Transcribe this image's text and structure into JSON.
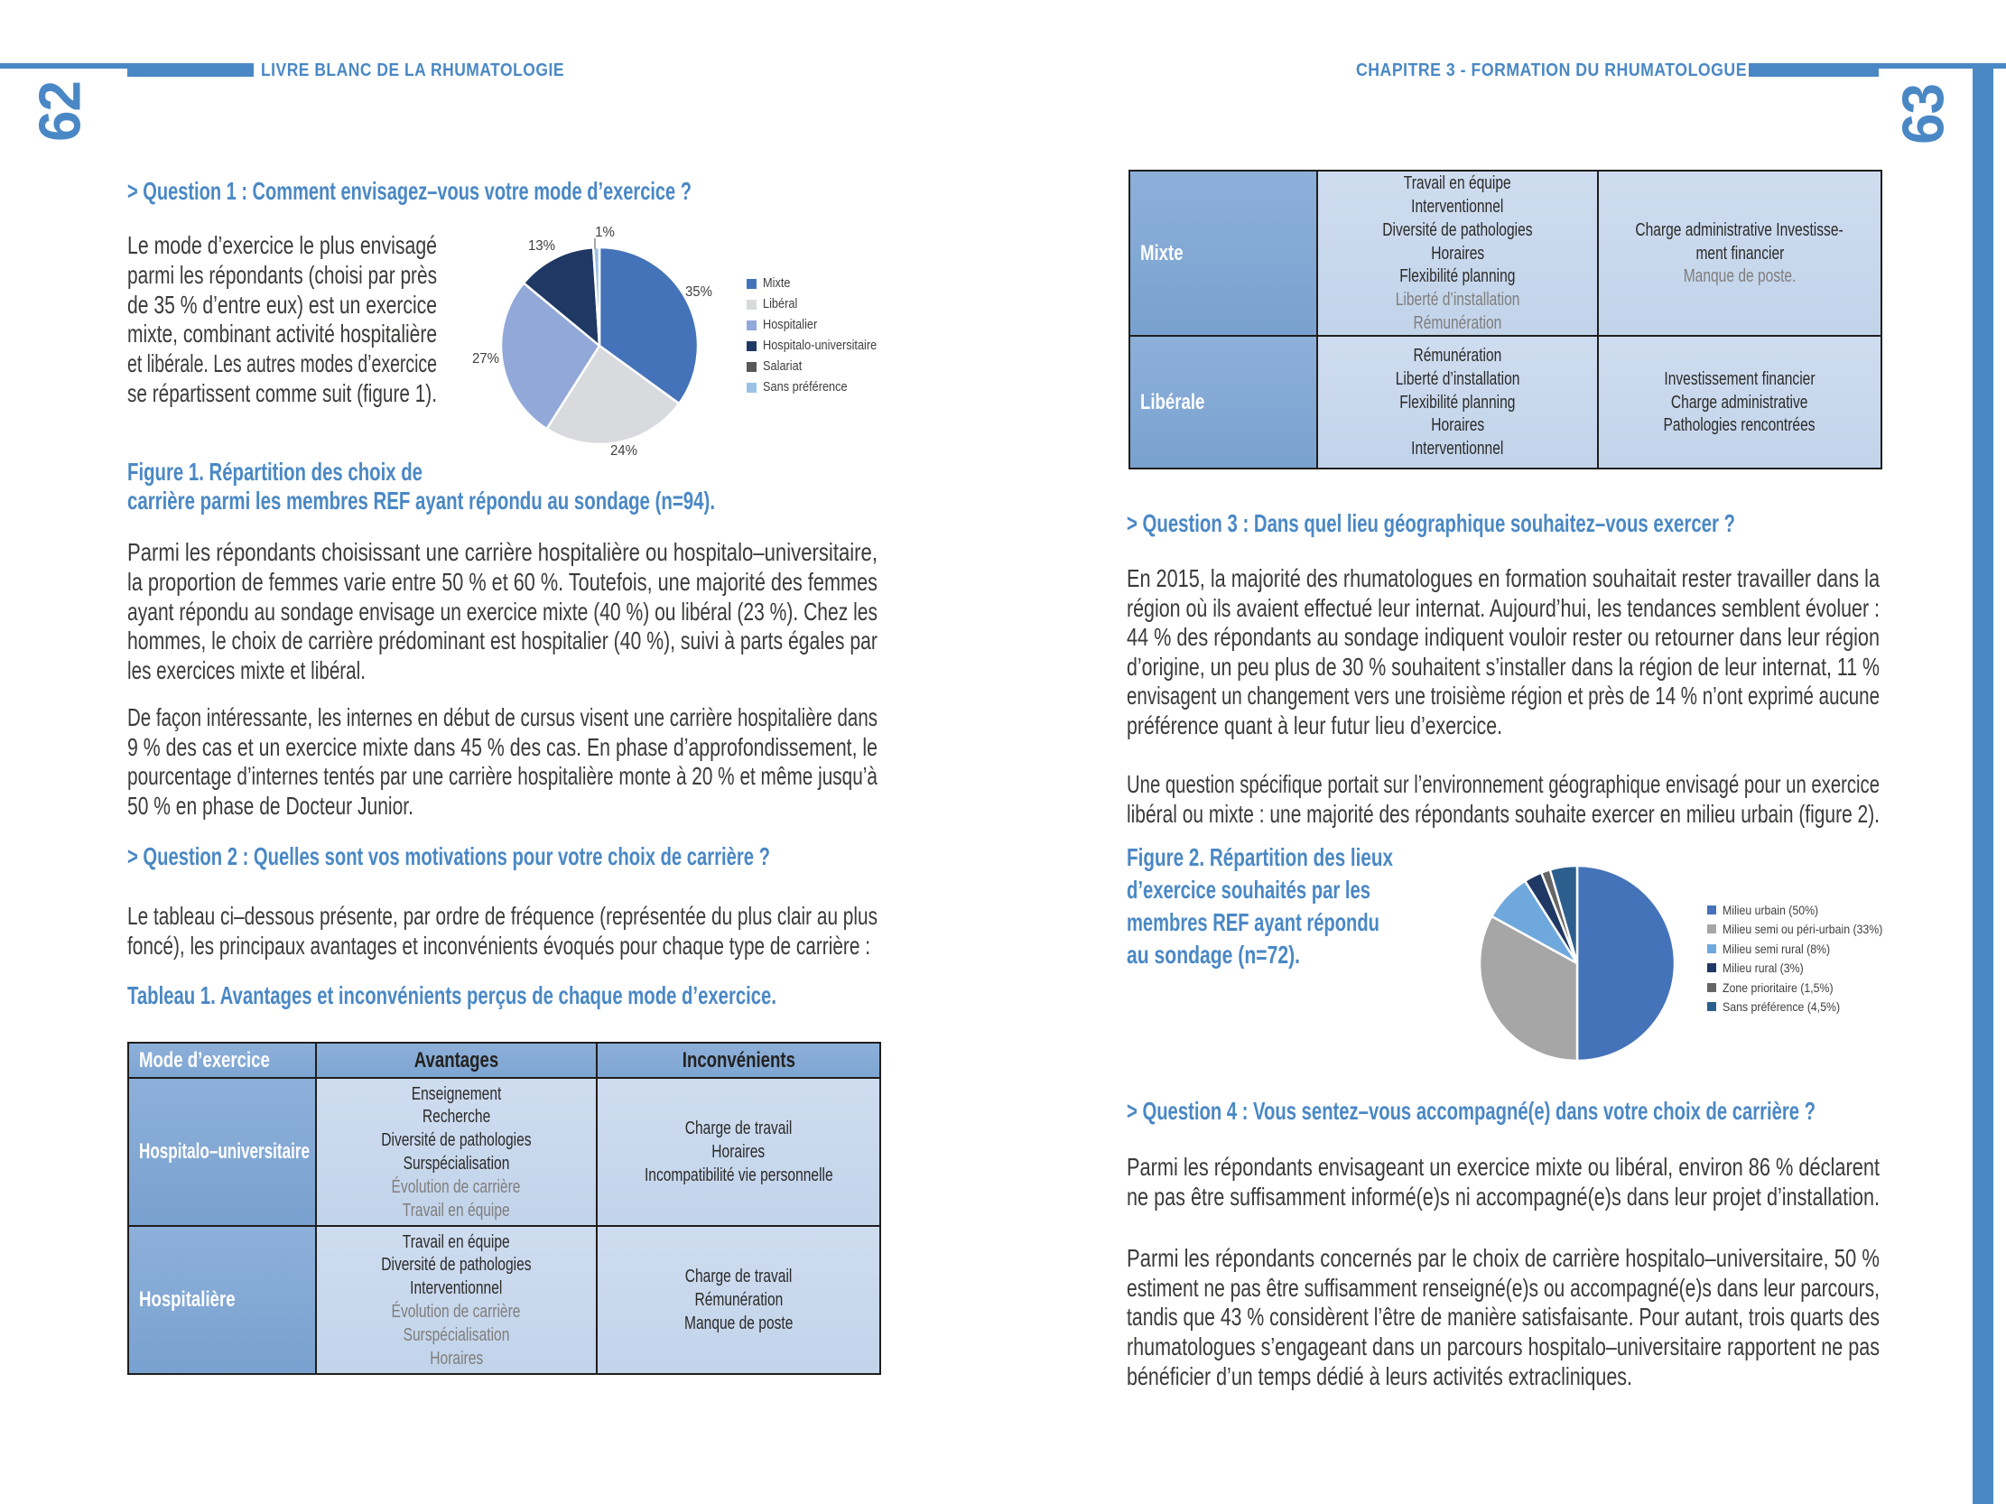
{
  "colors": {
    "accent": "#4a88c5",
    "table_header_bg": "#84a9d5",
    "table_label_bg": "#80a6d3",
    "table_cell_bg": "#c8d8ed",
    "body_text": "#3b3b3a",
    "muted_text": "#7f7d7c"
  },
  "header": {
    "left_title": "LIVRE BLANC DE LA RHUMATOLOGIE",
    "right_title": "CHAPITRE 3 - FORMATION DU RHUMATOLOGUE",
    "left_page_number": "62",
    "right_page_number": "63"
  },
  "left_page": {
    "q1_heading": "> Question 1 : Comment envisagez–vous votre mode d’exercice ?",
    "p1": [
      "Le mode d’exercice le plus envisagé",
      "parmi les répondants (choisi par près",
      "de 35 % d’entre eux) est un exercice",
      "mixte, combinant activité hospitalière",
      "et libérale. Les autres modes d’exercice",
      "se répartissent comme suit (figure 1)."
    ],
    "fig1_caption": [
      "Figure 1. Répartition des choix de",
      "carrière parmi les membres REF ayant répondu au sondage (n=94)."
    ],
    "p2": [
      "Parmi les répondants choisissant une carrière hospitalière ou hospitalo–universitaire,",
      "la proportion de femmes varie entre 50 % et 60 %. Toutefois, une majorité des femmes",
      "ayant répondu au sondage envisage un exercice mixte (40 %) ou libéral (23 %). Chez les",
      "hommes, le choix de carrière prédominant est hospitalier (40 %), suivi à parts égales par",
      "les exercices mixte et libéral."
    ],
    "p3": [
      "De façon intéressante, les internes en début de cursus visent une carrière hospitalière dans",
      "9 % des cas et un exercice mixte dans 45 % des cas. En phase d’approfondissement, le",
      "pourcentage d’internes tentés par une carrière hospitalière monte à 20 % et même jusqu’à",
      "50 % en phase de Docteur Junior."
    ],
    "q2_heading": "> Question 2 : Quelles sont vos motivations pour votre choix de carrière ?",
    "p4": [
      "Le tableau ci–dessous présente, par ordre de fréquence (représentée du plus clair au plus",
      "foncé), les principaux avantages et inconvénients évoqués pour chaque type de carrière :"
    ],
    "table1_title": "Tableau 1. Avantages et inconvénients perçus de chaque mode d’exercice."
  },
  "table1": {
    "headers": [
      "Mode d’exercice",
      "Avantages",
      "Inconvénients"
    ],
    "rows": [
      {
        "label": "Hospitalo–universitaire",
        "advantages": [
          {
            "t": "Enseignement"
          },
          {
            "t": "Recherche"
          },
          {
            "t": "Diversité de pathologies"
          },
          {
            "t": "Surspécialisation"
          },
          {
            "t": "Évolution de carrière",
            "muted": true
          },
          {
            "t": "Travail en équipe",
            "muted": true
          }
        ],
        "disadvantages": [
          {
            "t": "Charge de travail"
          },
          {
            "t": "Horaires"
          },
          {
            "t": "Incompatibilité vie personnelle"
          }
        ]
      },
      {
        "label": "Hospitalière",
        "advantages": [
          {
            "t": "Travail en équipe"
          },
          {
            "t": "Diversité de pathologies"
          },
          {
            "t": "Interventionnel"
          },
          {
            "t": "Évolution de carrière",
            "muted": true
          },
          {
            "t": "Surspécialisation",
            "muted": true
          },
          {
            "t": "Horaires",
            "muted": true
          }
        ],
        "disadvantages": [
          {
            "t": "Charge de travail"
          },
          {
            "t": "Rémunération"
          },
          {
            "t": "Manque de poste"
          }
        ]
      }
    ]
  },
  "table2": {
    "rows": [
      {
        "label": "Mixte",
        "advantages": [
          {
            "t": "Travail en équipe"
          },
          {
            "t": "Interventionnel"
          },
          {
            "t": "Diversité de pathologies"
          },
          {
            "t": "Horaires"
          },
          {
            "t": "Flexibilité planning"
          },
          {
            "t": "Liberté d’installation",
            "muted": true
          },
          {
            "t": "Rémunération",
            "muted": true
          }
        ],
        "disadvantages": [
          {
            "t": "Charge administrative Investisse-"
          },
          {
            "t": "ment financier"
          },
          {
            "t": "Manque de poste.",
            "muted": true
          }
        ]
      },
      {
        "label": "Libérale",
        "advantages": [
          {
            "t": "Rémunération"
          },
          {
            "t": "Liberté d’installation"
          },
          {
            "t": "Flexibilité planning"
          },
          {
            "t": "Horaires"
          },
          {
            "t": "Interventionnel"
          }
        ],
        "disadvantages": [
          {
            "t": "Investissement financier"
          },
          {
            "t": "Charge administrative"
          },
          {
            "t": "Pathologies rencontrées"
          }
        ]
      }
    ]
  },
  "right_page": {
    "q3_heading": "> Question 3 : Dans quel lieu géographique souhaitez–vous exercer ?",
    "p1": [
      "En 2015, la majorité des rhumatologues en formation souhaitait rester travailler dans la",
      "région où ils avaient effectué leur internat. Aujourd’hui, les tendances semblent évoluer :",
      "44 % des répondants au sondage indiquent vouloir rester ou retourner dans leur région",
      "d’origine, un peu plus de 30 % souhaitent s’installer dans la région de leur internat, 11 %",
      "envisagent un changement vers une troisième région et près de 14 % n’ont exprimé aucune",
      "préférence quant à leur futur lieu d’exercice."
    ],
    "p2": [
      "Une question spécifique portait sur l’environnement géographique envisagé pour un exercice",
      "libéral ou mixte : une majorité des répondants souhaite exercer en milieu urbain (figure 2)."
    ],
    "fig2_caption": [
      "Figure 2. Répartition des lieux",
      "d’exercice souhaités par les",
      "membres REF ayant répondu",
      "au sondage (n=72)."
    ],
    "q4_heading": "> Question 4 : Vous sentez–vous accompagné(e) dans votre choix de carrière ?",
    "p3": [
      "Parmi les répondants envisageant un exercice mixte ou libéral, environ 86 % déclarent",
      "ne pas être suffisamment informé(e)s ni accompagné(e)s dans leur projet d’installation."
    ],
    "p4": [
      "Parmi les répondants concernés par le choix de carrière hospitalo–universitaire, 50 %",
      "estiment ne pas être suffisamment renseigné(e)s ou accompagné(e)s dans leur parcours,",
      "tandis que 43 % considèrent l’être de manière satisfaisante. Pour autant, trois quarts des",
      "rhumatologues s’engageant dans un parcours hospitalo–universitaire rapportent ne pas",
      "bénéficier d’un temps dédié à leurs activités extracliniques."
    ]
  },
  "chart_data": [
    {
      "id": "fig1",
      "type": "pie",
      "title": "Figure 1. Répartition des choix de carrière parmi les membres REF ayant répondu au sondage (n=94).",
      "labels": [
        "Mixte",
        "Libéral",
        "Hospitalier",
        "Hospitalo-universitaire",
        "Salariat",
        "Sans préférence"
      ],
      "values": [
        35,
        24,
        27,
        13,
        0,
        1
      ],
      "unit": "%",
      "colors": [
        "#4573b9",
        "#d9dade",
        "#92a8d8",
        "#1f3864",
        "#585858",
        "#9cc2e5"
      ],
      "pct_labels": [
        "35%",
        "24%",
        "27%",
        "13%",
        "1%"
      ],
      "legend_position": "right",
      "start_angle_deg": 0,
      "direction": "clockwise",
      "legend": [
        {
          "label": "Mixte",
          "color": "#4573b9"
        },
        {
          "label": "Libéral",
          "color": "#d9dade"
        },
        {
          "label": "Hospitalier",
          "color": "#92a8d8"
        },
        {
          "label": "Hospitalo-universitaire",
          "color": "#1f3864"
        },
        {
          "label": "Salariat",
          "color": "#585858"
        },
        {
          "label": "Sans préférence",
          "color": "#9cc2e5"
        }
      ]
    },
    {
      "id": "fig2",
      "type": "pie",
      "title": "Figure 2. Répartition des lieux d’exercice souhaités par les membres REF ayant répondu au sondage (n=72).",
      "labels": [
        "Milieu urbain (50%)",
        "Milieu semi ou péri-urbain (33%)",
        "Milieu semi rural (8%)",
        "Milieu rural (3%)",
        "Zone prioritaire (1,5%)",
        "Sans préférence (4,5%)"
      ],
      "values": [
        50,
        33,
        8,
        3,
        1.5,
        4.5
      ],
      "unit": "%",
      "colors": [
        "#4573b9",
        "#a6a6a6",
        "#6fa8dc",
        "#1f3864",
        "#666666",
        "#2d5f8e"
      ],
      "legend_position": "right",
      "start_angle_deg": 0,
      "direction": "clockwise",
      "legend": [
        {
          "label": "Milieu urbain (50%)",
          "color": "#4573b9"
        },
        {
          "label": "Milieu semi ou péri-urbain (33%)",
          "color": "#a6a6a6"
        },
        {
          "label": "Milieu semi rural (8%)",
          "color": "#6fa8dc"
        },
        {
          "label": "Milieu rural (3%)",
          "color": "#1f3864"
        },
        {
          "label": "Zone prioritaire (1,5%)",
          "color": "#666666"
        },
        {
          "label": "Sans préférence (4,5%)",
          "color": "#2d5f8e"
        }
      ]
    }
  ]
}
